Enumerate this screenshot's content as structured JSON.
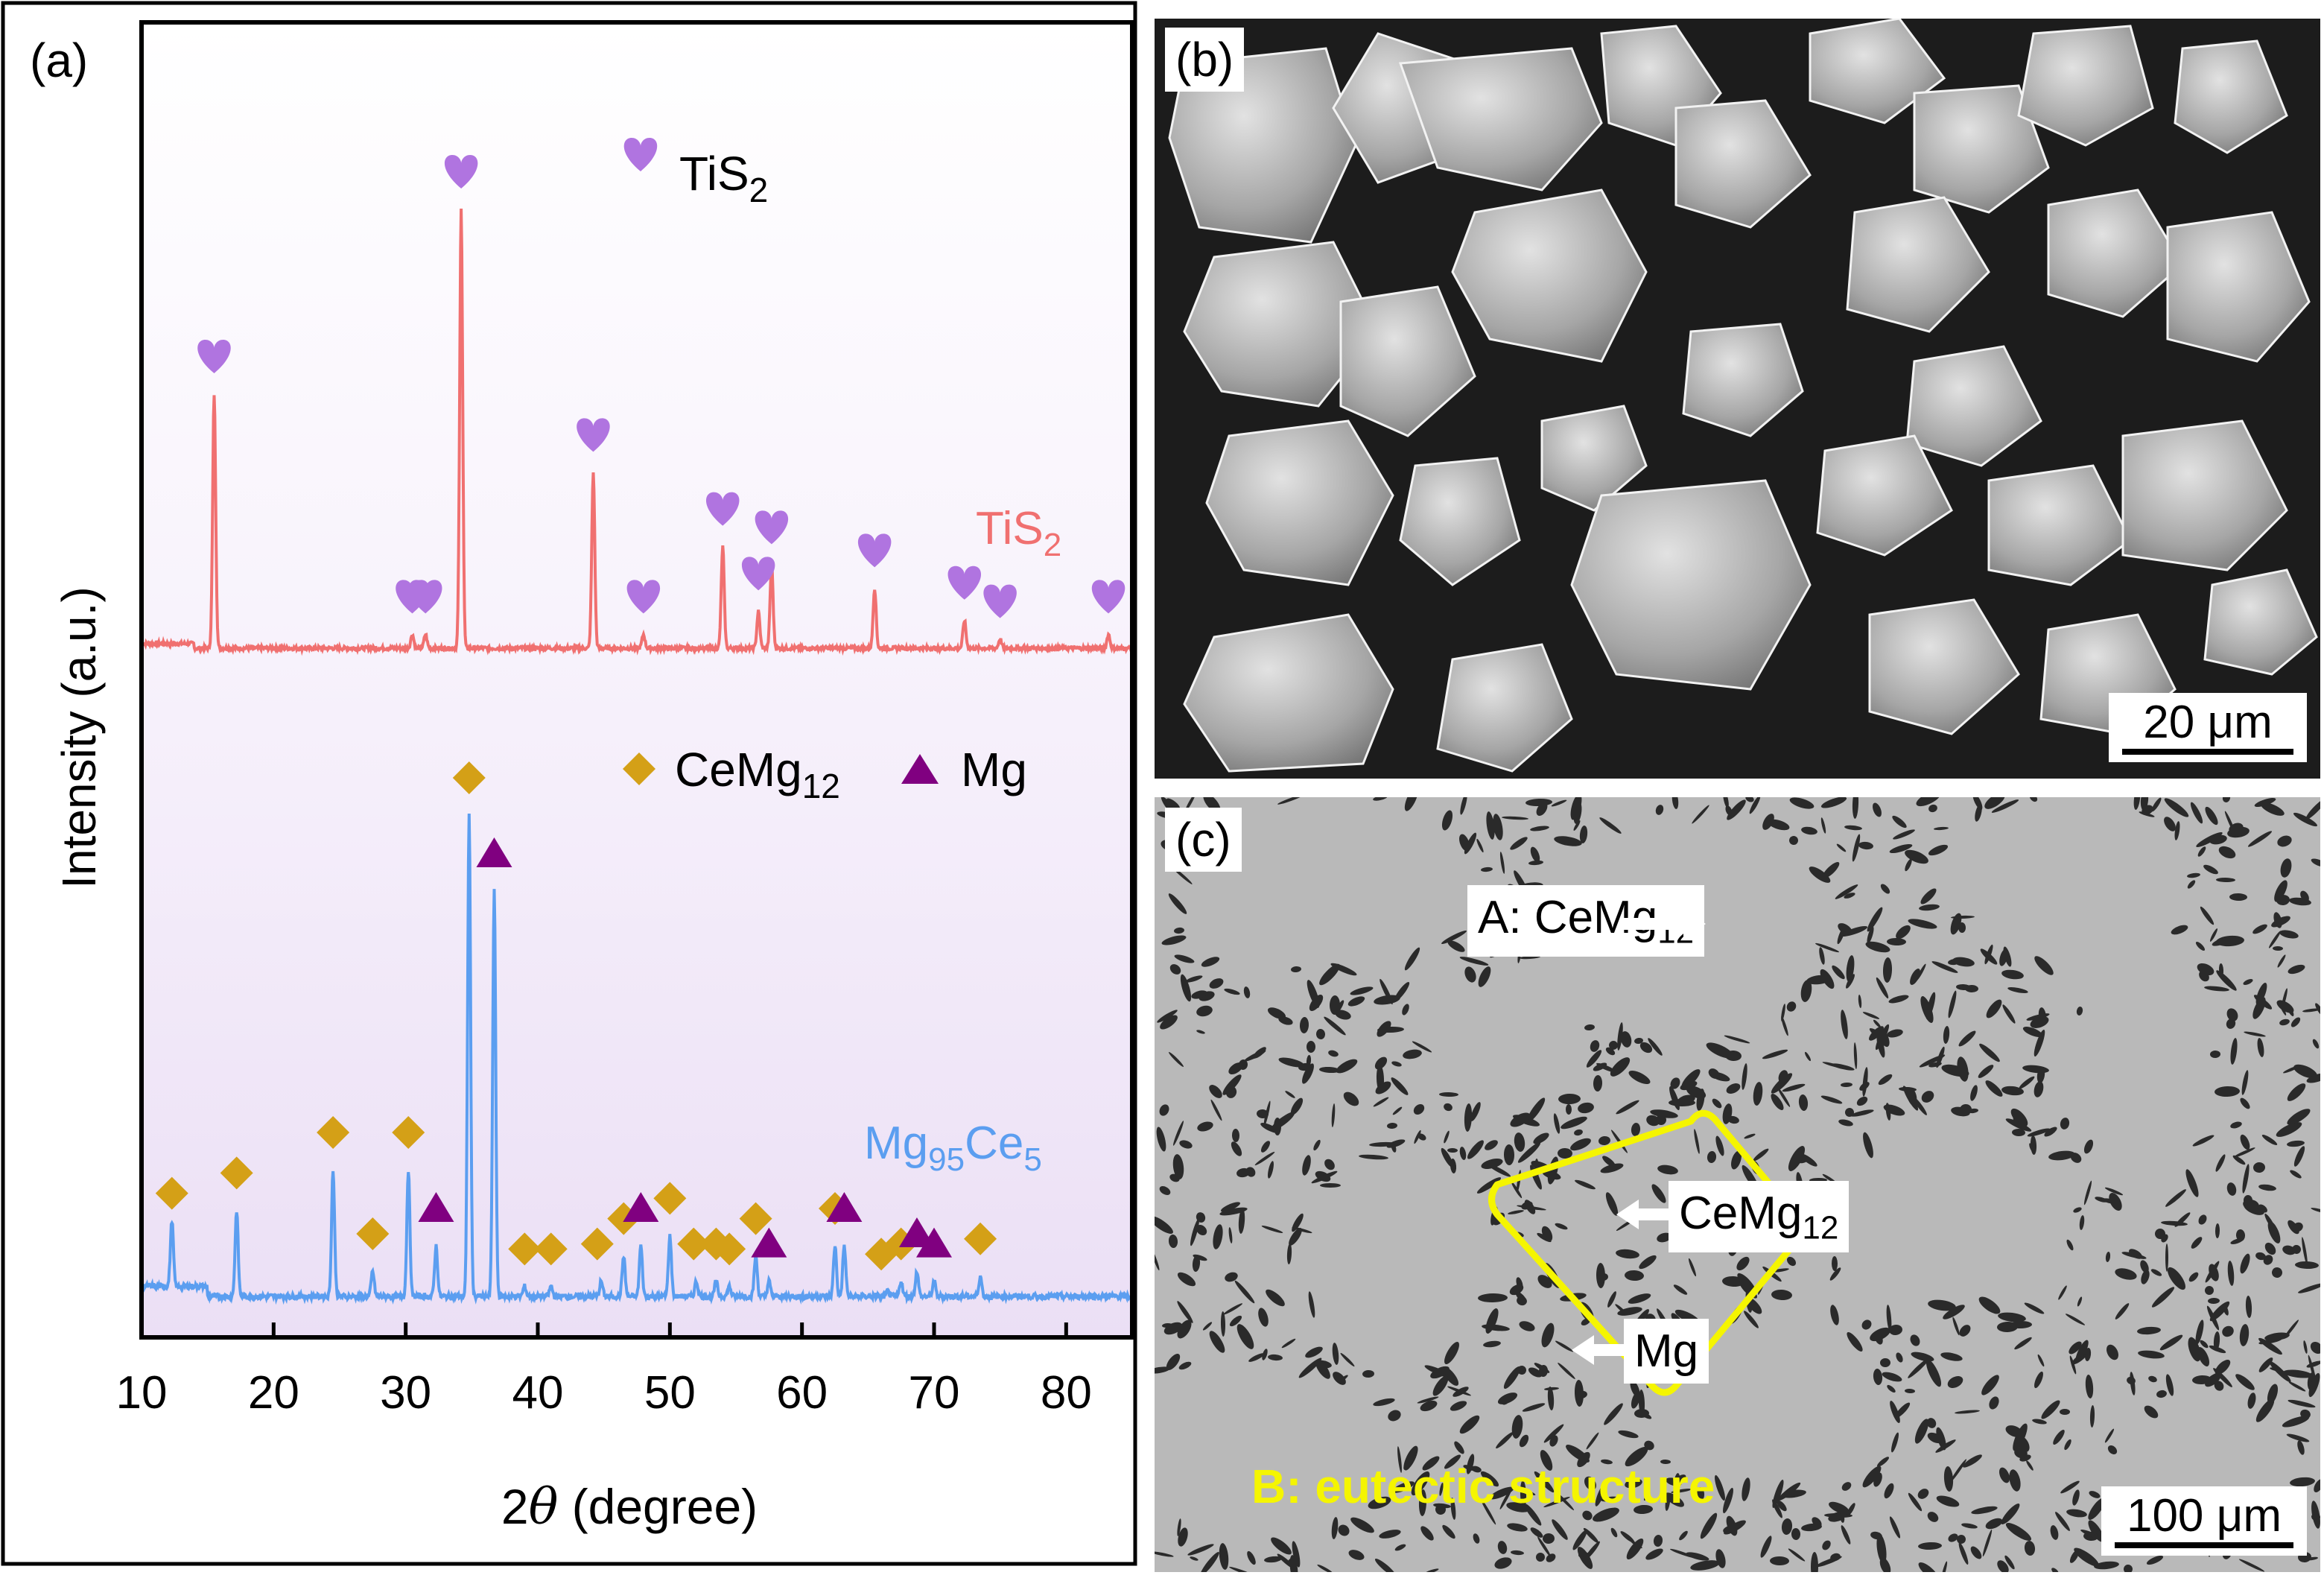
{
  "panel_a": {
    "label": "(a)",
    "chart_data": {
      "type": "line",
      "xlabel_prefix": "2",
      "xlabel_theta": "θ",
      "xlabel_suffix": " (degree)",
      "ylabel": "Intensity (a.u.)",
      "xlim": [
        10,
        85
      ],
      "xticks": [
        "10",
        "20",
        "30",
        "40",
        "50",
        "60",
        "70",
        "80"
      ],
      "xtick_values": [
        10,
        20,
        30,
        40,
        50,
        60,
        70,
        80
      ],
      "series": [
        {
          "name": "TiS2",
          "label_main": "TiS",
          "label_sub": "2",
          "color": "#f07070",
          "peaks": [
            {
              "x": 15.5,
              "h": 0.55
            },
            {
              "x": 30.5,
              "h": 0.03
            },
            {
              "x": 31.5,
              "h": 0.03
            },
            {
              "x": 34.2,
              "h": 0.95
            },
            {
              "x": 44.2,
              "h": 0.38
            },
            {
              "x": 48.0,
              "h": 0.03
            },
            {
              "x": 54.0,
              "h": 0.22
            },
            {
              "x": 56.7,
              "h": 0.08
            },
            {
              "x": 57.7,
              "h": 0.18
            },
            {
              "x": 65.5,
              "h": 0.13
            },
            {
              "x": 72.3,
              "h": 0.06
            },
            {
              "x": 75.0,
              "h": 0.02
            },
            {
              "x": 83.2,
              "h": 0.03
            }
          ],
          "markers": [
            {
              "x": 15.5,
              "symbol": "heart"
            },
            {
              "x": 30.5,
              "symbol": "heart"
            },
            {
              "x": 31.5,
              "symbol": "heart"
            },
            {
              "x": 34.2,
              "symbol": "heart"
            },
            {
              "x": 44.2,
              "symbol": "heart"
            },
            {
              "x": 48.0,
              "symbol": "heart"
            },
            {
              "x": 54.0,
              "symbol": "heart"
            },
            {
              "x": 56.7,
              "symbol": "heart"
            },
            {
              "x": 57.7,
              "symbol": "heart"
            },
            {
              "x": 65.5,
              "symbol": "heart"
            },
            {
              "x": 72.3,
              "symbol": "heart"
            },
            {
              "x": 75.0,
              "symbol": "heart"
            },
            {
              "x": 83.2,
              "symbol": "heart"
            }
          ]
        },
        {
          "name": "Mg95Ce5",
          "label_main": "Mg",
          "label_sub1": "95",
          "label_mid": "Ce",
          "label_sub2": "5",
          "color": "#5b9ef0",
          "peaks": [
            {
              "x": 12.3,
              "h": 0.13
            },
            {
              "x": 17.2,
              "h": 0.17
            },
            {
              "x": 24.5,
              "h": 0.25
            },
            {
              "x": 27.5,
              "h": 0.05
            },
            {
              "x": 30.2,
              "h": 0.25
            },
            {
              "x": 32.3,
              "h": 0.1
            },
            {
              "x": 34.8,
              "h": 0.95
            },
            {
              "x": 36.7,
              "h": 0.8
            },
            {
              "x": 39.0,
              "h": 0.02
            },
            {
              "x": 41.0,
              "h": 0.02
            },
            {
              "x": 44.8,
              "h": 0.03
            },
            {
              "x": 46.5,
              "h": 0.08
            },
            {
              "x": 47.8,
              "h": 0.1
            },
            {
              "x": 50.0,
              "h": 0.12
            },
            {
              "x": 52.0,
              "h": 0.03
            },
            {
              "x": 53.5,
              "h": 0.03
            },
            {
              "x": 54.5,
              "h": 0.02
            },
            {
              "x": 56.5,
              "h": 0.08
            },
            {
              "x": 57.5,
              "h": 0.03
            },
            {
              "x": 62.5,
              "h": 0.1
            },
            {
              "x": 63.2,
              "h": 0.1
            },
            {
              "x": 66.5,
              "h": 0.01
            },
            {
              "x": 67.5,
              "h": 0.03
            },
            {
              "x": 68.7,
              "h": 0.05
            },
            {
              "x": 70.0,
              "h": 0.03
            },
            {
              "x": 73.5,
              "h": 0.04
            }
          ],
          "markers": [
            {
              "x": 12.3,
              "symbol": "diamond"
            },
            {
              "x": 17.2,
              "symbol": "diamond"
            },
            {
              "x": 24.5,
              "symbol": "diamond"
            },
            {
              "x": 27.5,
              "symbol": "diamond"
            },
            {
              "x": 30.2,
              "symbol": "diamond"
            },
            {
              "x": 32.3,
              "symbol": "triangle"
            },
            {
              "x": 34.8,
              "symbol": "diamond"
            },
            {
              "x": 36.7,
              "symbol": "triangle"
            },
            {
              "x": 39.0,
              "symbol": "diamond"
            },
            {
              "x": 41.0,
              "symbol": "diamond"
            },
            {
              "x": 44.5,
              "symbol": "diamond"
            },
            {
              "x": 46.5,
              "symbol": "diamond"
            },
            {
              "x": 47.8,
              "symbol": "triangle"
            },
            {
              "x": 50.0,
              "symbol": "diamond"
            },
            {
              "x": 51.8,
              "symbol": "diamond"
            },
            {
              "x": 53.5,
              "symbol": "diamond"
            },
            {
              "x": 54.5,
              "symbol": "diamond"
            },
            {
              "x": 56.5,
              "symbol": "diamond"
            },
            {
              "x": 57.5,
              "symbol": "triangle"
            },
            {
              "x": 62.5,
              "symbol": "diamond"
            },
            {
              "x": 63.2,
              "symbol": "triangle"
            },
            {
              "x": 66.0,
              "symbol": "diamond"
            },
            {
              "x": 67.5,
              "symbol": "diamond"
            },
            {
              "x": 68.7,
              "symbol": "triangle"
            },
            {
              "x": 70.0,
              "symbol": "triangle"
            },
            {
              "x": 73.5,
              "symbol": "diamond"
            }
          ]
        }
      ],
      "legend_tis2_main": "TiS",
      "legend_tis2_sub": "2",
      "legend_cemg_main": "CeMg",
      "legend_cemg_sub": "12",
      "legend_mg": "Mg",
      "colors": {
        "heart": "#b074e0",
        "diamond": "#d4a017",
        "triangle": "#800080"
      }
    }
  },
  "panel_b": {
    "label": "(b)",
    "scale_bar": "20 μm"
  },
  "panel_c": {
    "label": "(c)",
    "scale_bar": "100 μm",
    "callout_a_prefix": "A: CeMg",
    "callout_a_sub": "12",
    "callout_cemg_main": "CeMg",
    "callout_cemg_sub": "12",
    "callout_mg": "Mg",
    "eutectic_label": "B: eutectic structure",
    "eutectic_color": "#f5f500"
  }
}
